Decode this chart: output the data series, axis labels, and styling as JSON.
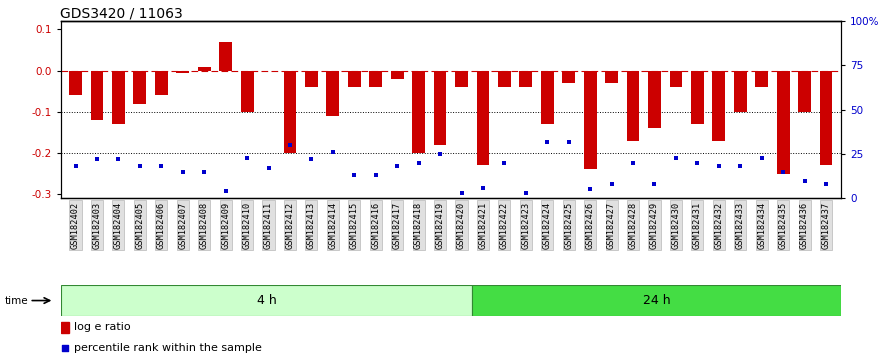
{
  "title": "GDS3420 / 11063",
  "samples": [
    "GSM182402",
    "GSM182403",
    "GSM182404",
    "GSM182405",
    "GSM182406",
    "GSM182407",
    "GSM182408",
    "GSM182409",
    "GSM182410",
    "GSM182411",
    "GSM182412",
    "GSM182413",
    "GSM182414",
    "GSM182415",
    "GSM182416",
    "GSM182417",
    "GSM182418",
    "GSM182419",
    "GSM182420",
    "GSM182421",
    "GSM182422",
    "GSM182423",
    "GSM182424",
    "GSM182425",
    "GSM182426",
    "GSM182427",
    "GSM182428",
    "GSM182429",
    "GSM182430",
    "GSM182431",
    "GSM182432",
    "GSM182433",
    "GSM182434",
    "GSM182435",
    "GSM182436",
    "GSM182437"
  ],
  "log_ratios": [
    -0.06,
    -0.12,
    -0.13,
    -0.08,
    -0.06,
    -0.005,
    0.01,
    0.07,
    -0.1,
    0.0,
    -0.2,
    -0.04,
    -0.11,
    -0.04,
    -0.04,
    -0.02,
    -0.2,
    -0.18,
    -0.04,
    -0.23,
    -0.04,
    -0.04,
    -0.13,
    -0.03,
    -0.24,
    -0.03,
    -0.17,
    -0.14,
    -0.04,
    -0.13,
    -0.17,
    -0.1,
    -0.04,
    -0.25,
    -0.1,
    -0.23
  ],
  "percentile_ranks": [
    18,
    22,
    22,
    18,
    18,
    15,
    15,
    4,
    23,
    17,
    30,
    22,
    26,
    13,
    13,
    18,
    20,
    25,
    3,
    6,
    20,
    3,
    32,
    32,
    5,
    8,
    20,
    8,
    23,
    20,
    18,
    18,
    23,
    15,
    10,
    8
  ],
  "group1_label": "4 h",
  "group1_count": 19,
  "group2_label": "24 h",
  "group2_count": 17,
  "bar_color": "#cc0000",
  "dot_color": "#0000cc",
  "ylim_left": [
    -0.31,
    0.12
  ],
  "ylim_right": [
    0,
    100
  ],
  "yticks_left": [
    -0.3,
    -0.2,
    -0.1,
    0.0,
    0.1
  ],
  "yticks_right": [
    0,
    25,
    50,
    75,
    100
  ],
  "ytick_right_labels": [
    "0",
    "25",
    "50",
    "75",
    "100%"
  ],
  "background_color": "#ffffff",
  "title_fontsize": 10,
  "legend_label_ratio": "log e ratio",
  "legend_label_rank": "percentile rank within the sample",
  "group1_color": "#ccffcc",
  "group2_color": "#44dd44",
  "group_border_color": "#338833"
}
